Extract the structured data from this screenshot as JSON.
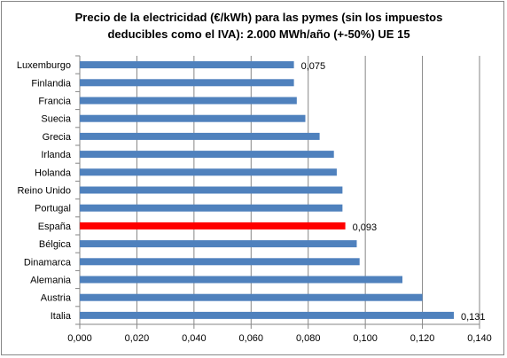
{
  "chart_data": {
    "type": "bar",
    "orientation": "horizontal",
    "title_lines": [
      "Precio de la electricidad (€/kWh) para las pymes (sin los impuestos",
      "deducibles como el  IVA): 2.000  MWh/año (+-50%) UE 15"
    ],
    "categories": [
      "Luxemburgo",
      "Finlandia",
      "Francia",
      "Suecia",
      "Grecia",
      "Irlanda",
      "Holanda",
      "Reino Unido",
      "Portugal",
      "España",
      "Bélgica",
      "Dinamarca",
      "Alemania",
      "Austria",
      "Italia"
    ],
    "values": [
      0.075,
      0.075,
      0.076,
      0.079,
      0.084,
      0.089,
      0.09,
      0.092,
      0.092,
      0.093,
      0.097,
      0.098,
      0.113,
      0.12,
      0.131
    ],
    "highlight_index": 9,
    "data_labels": [
      {
        "index": 0,
        "text": "0,075"
      },
      {
        "index": 9,
        "text": "0,093"
      },
      {
        "index": 14,
        "text": "0,131"
      }
    ],
    "x_ticks": [
      "0,000",
      "0,020",
      "0,040",
      "0,060",
      "0,080",
      "0,100",
      "0,120",
      "0,140"
    ],
    "xlim": [
      0,
      0.14
    ],
    "grid": true,
    "colors": {
      "bar": "#4f81bd",
      "highlight": "#ff0000",
      "grid": "#868686"
    }
  }
}
